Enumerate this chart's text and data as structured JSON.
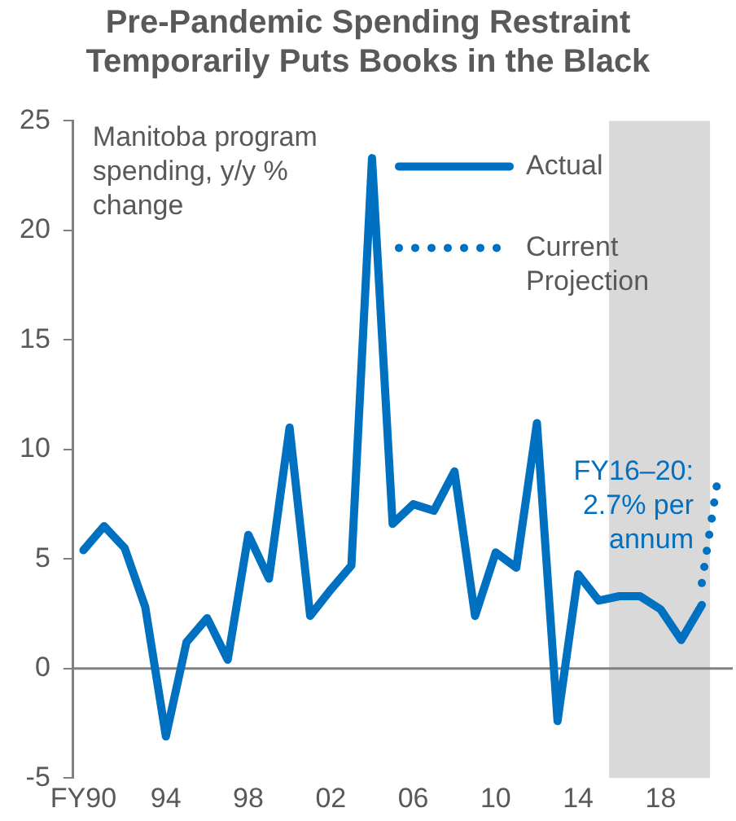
{
  "chart_data": {
    "type": "line",
    "title": "Pre-Pandemic Spending Restraint Temporarily Puts Books in the Black",
    "ylabel": "Manitoba program spending, y/y % change",
    "x": [
      1990,
      1991,
      1992,
      1993,
      1994,
      1995,
      1996,
      1997,
      1998,
      1999,
      2000,
      2001,
      2002,
      2003,
      2004,
      2005,
      2006,
      2007,
      2008,
      2009,
      2010,
      2011,
      2012,
      2013,
      2014,
      2015,
      2016,
      2017,
      2018,
      2019,
      2020
    ],
    "series": [
      {
        "name": "Actual",
        "color": "#0070c0",
        "line_style": "solid",
        "values": [
          5.4,
          6.5,
          5.5,
          2.8,
          -3.1,
          1.2,
          2.3,
          0.4,
          6.1,
          4.1,
          11.0,
          2.4,
          3.6,
          4.7,
          23.3,
          6.6,
          7.5,
          7.2,
          9.0,
          2.4,
          5.3,
          4.6,
          11.2,
          -2.4,
          4.3,
          3.1,
          3.3,
          3.3,
          2.7,
          1.3,
          2.9
        ]
      },
      {
        "name": "Current Projection",
        "color": "#0070c0",
        "line_style": "dotted",
        "x": [
          2020,
          2020.8
        ],
        "values": [
          3.9,
          8.8
        ]
      }
    ],
    "xlim": [
      1989.5,
      2021.5
    ],
    "xticks": [
      {
        "value": 1990,
        "label": "FY90"
      },
      {
        "value": 1994,
        "label": "94"
      },
      {
        "value": 1998,
        "label": "98"
      },
      {
        "value": 2002,
        "label": "02"
      },
      {
        "value": 2006,
        "label": "06"
      },
      {
        "value": 2010,
        "label": "10"
      },
      {
        "value": 2014,
        "label": "14"
      },
      {
        "value": 2018,
        "label": "18"
      }
    ],
    "ylim": [
      -5,
      25
    ],
    "yticks": [
      -5,
      0,
      5,
      10,
      15,
      20,
      25
    ],
    "bands": [
      {
        "axis": "x",
        "from": 2015.5,
        "to": 2020.4,
        "color": "#d9d9d9"
      }
    ],
    "ref_lines": [
      {
        "axis": "y",
        "value": 0,
        "color": "#808080"
      }
    ],
    "annotations": [
      "FY16–20: 2.7% per annum"
    ],
    "grid": false,
    "legend": "top right",
    "marker": "none"
  }
}
